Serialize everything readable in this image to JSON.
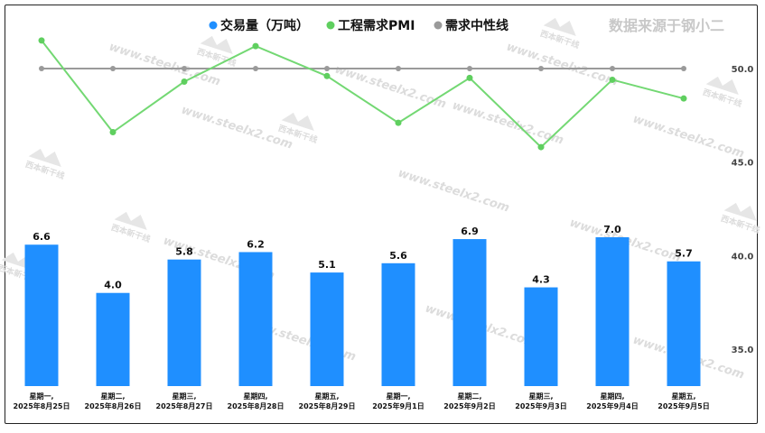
{
  "source_note": "数据来源于钢小二",
  "watermark": {
    "url_text": "www.steelx2.com",
    "logo_text": "西本新干线"
  },
  "colors": {
    "bar": "#1f8fff",
    "pmi": "#73d873",
    "neutral": "#9a9a9a"
  },
  "chart_data": {
    "type": "bar+line",
    "categories": [
      [
        "星期一,",
        "2025年8月25日"
      ],
      [
        "星期二,",
        "2025年8月26日"
      ],
      [
        "星期三,",
        "2025年8月27日"
      ],
      [
        "星期四,",
        "2025年8月28日"
      ],
      [
        "星期五,",
        "2025年8月29日"
      ],
      [
        "星期一,",
        "2025年9月1日"
      ],
      [
        "星期二,",
        "2025年9月2日"
      ],
      [
        "星期三,",
        "2025年9月3日"
      ],
      [
        "星期四,",
        "2025年9月4日"
      ],
      [
        "星期五,",
        "2025年9月5日"
      ]
    ],
    "series": [
      {
        "name": "交易量（万吨）",
        "type": "bar",
        "axis": "left",
        "values": [
          6.6,
          4.0,
          5.8,
          6.2,
          5.1,
          5.6,
          6.9,
          4.3,
          7.0,
          5.7
        ],
        "labels": [
          "6.6",
          "4.0",
          "5.8",
          "6.2",
          "5.1",
          "5.6",
          "6.9",
          "4.3",
          "7.0",
          "5.7"
        ]
      },
      {
        "name": "工程需求PMI",
        "type": "line",
        "axis": "right",
        "values": [
          51.5,
          46.6,
          49.3,
          51.2,
          49.6,
          47.1,
          49.5,
          45.8,
          49.4,
          48.4
        ]
      },
      {
        "name": "需求中性线",
        "type": "line",
        "axis": "right",
        "values": [
          50,
          50,
          50,
          50,
          50,
          50,
          50,
          50,
          50,
          50
        ]
      }
    ],
    "y_right": {
      "ticks": [
        "35.0",
        "40.0",
        "45.0",
        "50.0"
      ],
      "range": [
        32.5,
        53.5
      ]
    },
    "y_left": {
      "range": [
        -1.02,
        7.4
      ]
    },
    "legend_position": "top-center",
    "grid": false
  }
}
